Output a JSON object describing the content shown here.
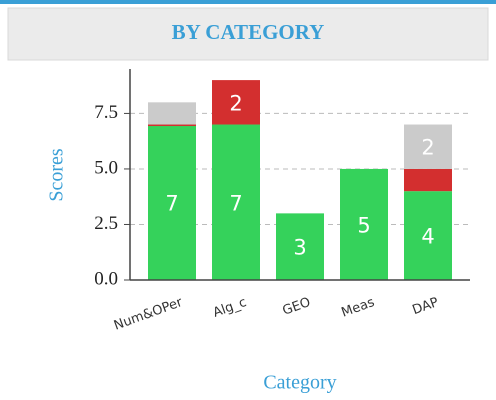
{
  "chart_data": {
    "type": "stacked_bar",
    "title": "BY CATEGORY",
    "x_label": "Category",
    "y_label": "Scores",
    "categories": [
      "Num&OPer",
      "Alg_c",
      "GEO",
      "Meas",
      "DAP"
    ],
    "series": [
      {
        "color": "#35d25b",
        "values": [
          7,
          7,
          3,
          5,
          4
        ],
        "value_labels": [
          "7",
          "7",
          "3",
          "5",
          "4"
        ]
      },
      {
        "color": "#d32f2f",
        "values": [
          0,
          2,
          0,
          0,
          1
        ],
        "value_labels": [
          null,
          "2",
          null,
          null,
          null
        ]
      },
      {
        "color": "#cbcbcb",
        "values": [
          1,
          0,
          0,
          0,
          2
        ],
        "value_labels": [
          null,
          null,
          null,
          null,
          "2"
        ]
      }
    ],
    "ylim": [
      0,
      9.5
    ],
    "yticks": [
      {
        "value": 0,
        "label": "0.0"
      },
      2.5,
      {
        "value": 5,
        "label": "5.0"
      },
      7.5
    ],
    "grid": true
  }
}
